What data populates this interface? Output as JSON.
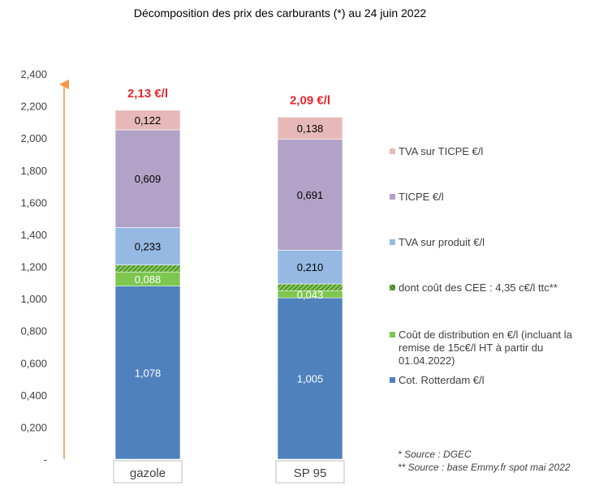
{
  "chart_data": {
    "type": "bar",
    "stacked": true,
    "title": "Décomposition des prix des carburants (*) au 24 juin 2022",
    "categories": [
      "gazole",
      "SP 95"
    ],
    "ylim": [
      0,
      2.4
    ],
    "yticks": [
      {
        "value": 0,
        "label": "-"
      },
      {
        "value": 0.2,
        "label": "0,200"
      },
      {
        "value": 0.4,
        "label": "0,400"
      },
      {
        "value": 0.6,
        "label": "0,600"
      },
      {
        "value": 0.8,
        "label": "0,800"
      },
      {
        "value": 1.0,
        "label": "1,000"
      },
      {
        "value": 1.2,
        "label": "1,200"
      },
      {
        "value": 1.4,
        "label": "1,400"
      },
      {
        "value": 1.6,
        "label": "1,600"
      },
      {
        "value": 1.8,
        "label": "1,800"
      },
      {
        "value": 2.0,
        "label": "2,000"
      },
      {
        "value": 2.2,
        "label": "2,200"
      },
      {
        "value": 2.4,
        "label": "2,400"
      }
    ],
    "grid": false,
    "legend_position": "right",
    "totals": [
      {
        "value": 2.13,
        "label": "2,13 €/l"
      },
      {
        "value": 2.09,
        "label": "2,09 €/l"
      }
    ],
    "series": [
      {
        "name": "Cot. Rotterdam €/l",
        "color": "#4f81bd",
        "values": [
          1.078,
          1.005
        ],
        "labels": [
          "1,078",
          "1,005"
        ],
        "label_color": "#ffffff"
      },
      {
        "name": "Coût de distribution en €/l (incluant la remise de 15c€/l HT à partir du 01.04.2022)",
        "color": "#7dc64f",
        "values": [
          0.088,
          0.043
        ],
        "labels": [
          "0,088",
          "0,043"
        ],
        "label_color": "#ffffff"
      },
      {
        "name": "dont coût des CEE : 4,35 c€/l ttc**",
        "color": "#5a8f38",
        "pattern": "hatch",
        "values": [
          0.0435,
          0.0435
        ],
        "labels": [
          "",
          ""
        ],
        "label_color": "#ffffff"
      },
      {
        "name": "TVA sur produit €/l",
        "color": "#95b9e2",
        "values": [
          0.233,
          0.21
        ],
        "labels": [
          "0,233",
          "0,210"
        ],
        "label_color": "#000000"
      },
      {
        "name": "TICPE €/l",
        "color": "#b3a2c7",
        "values": [
          0.609,
          0.691
        ],
        "labels": [
          "0,609",
          "0,691"
        ],
        "label_color": "#000000"
      },
      {
        "name": "TVA sur TICPE €/l",
        "color": "#e6b9b8",
        "values": [
          0.122,
          0.138
        ],
        "labels": [
          "0,122",
          "0,138"
        ],
        "label_color": "#000000"
      }
    ],
    "legend_order": [
      5,
      4,
      3,
      2,
      1,
      0
    ],
    "arrow_color": "#f79646",
    "total_color": "#e8262d"
  },
  "notes": [
    "* Source : DGEC",
    "** Source : base Emmy.fr spot mai 2022"
  ]
}
